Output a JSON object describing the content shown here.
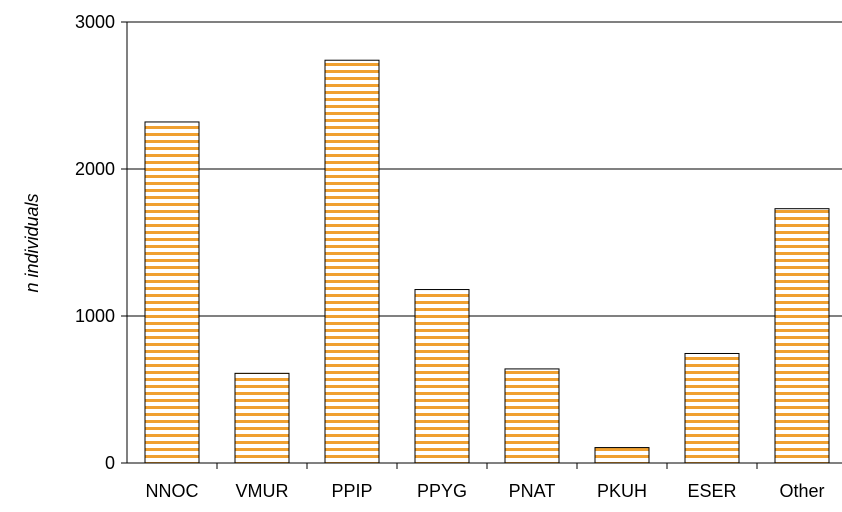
{
  "chart_data": {
    "type": "bar",
    "title": "",
    "xlabel": "",
    "ylabel": "n individuals",
    "categories": [
      "NNOC",
      "VMUR",
      "PPIP",
      "PPYG",
      "PNAT",
      "PKUH",
      "ESER",
      "Other"
    ],
    "values": [
      2320,
      610,
      2740,
      1180,
      640,
      105,
      745,
      1730
    ],
    "ylim": [
      0,
      3000
    ],
    "yticks": [
      0,
      1000,
      2000,
      3000
    ],
    "grid": true,
    "legend": "none",
    "colors": {
      "bar_stripe": "#F0A030",
      "bar_bg": "#FFFFFF",
      "outline": "#000000",
      "grid": "#000000"
    }
  }
}
